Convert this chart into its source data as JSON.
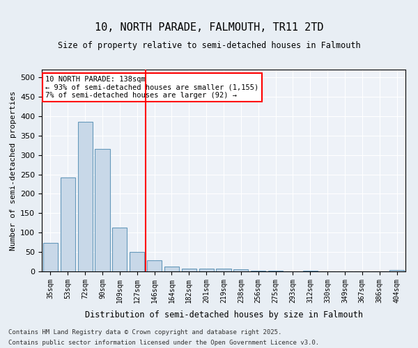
{
  "title_line1": "10, NORTH PARADE, FALMOUTH, TR11 2TD",
  "title_line2": "Size of property relative to semi-detached houses in Falmouth",
  "xlabel": "Distribution of semi-detached houses by size in Falmouth",
  "ylabel": "Number of semi-detached properties",
  "categories": [
    "35sqm",
    "53sqm",
    "72sqm",
    "90sqm",
    "109sqm",
    "127sqm",
    "146sqm",
    "164sqm",
    "182sqm",
    "201sqm",
    "219sqm",
    "238sqm",
    "256sqm",
    "275sqm",
    "293sqm",
    "312sqm",
    "330sqm",
    "349sqm",
    "367sqm",
    "386sqm",
    "404sqm"
  ],
  "values": [
    74,
    242,
    385,
    315,
    113,
    50,
    28,
    13,
    7,
    8,
    7,
    6,
    1,
    1,
    0,
    1,
    0,
    0,
    0,
    0,
    3
  ],
  "bar_color": "#c8d8e8",
  "bar_edge_color": "#6699bb",
  "vline_x": 5.5,
  "vline_color": "red",
  "annotation_title": "10 NORTH PARADE: 138sqm",
  "annotation_line1": "← 93% of semi-detached houses are smaller (1,155)",
  "annotation_line2": "7% of semi-detached houses are larger (92) →",
  "annotation_box_color": "red",
  "ylim": [
    0,
    520
  ],
  "yticks": [
    0,
    50,
    100,
    150,
    200,
    250,
    300,
    350,
    400,
    450,
    500
  ],
  "footer_line1": "Contains HM Land Registry data © Crown copyright and database right 2025.",
  "footer_line2": "Contains public sector information licensed under the Open Government Licence v3.0.",
  "bg_color": "#e8eef4",
  "plot_bg_color": "#eef2f8"
}
